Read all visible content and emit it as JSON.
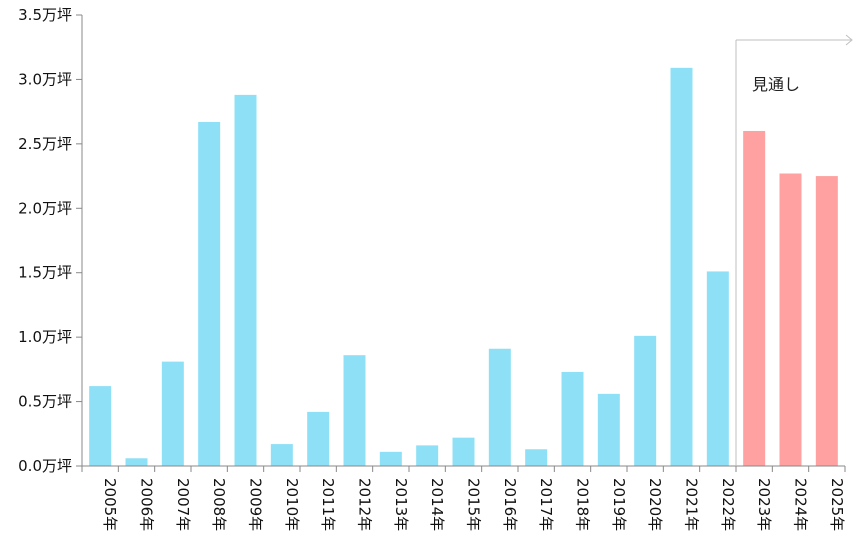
{
  "chart_data": {
    "type": "bar",
    "categories": [
      "2005年",
      "2006年",
      "2007年",
      "2008年",
      "2009年",
      "2010年",
      "2011年",
      "2012年",
      "2013年",
      "2014年",
      "2015年",
      "2016年",
      "2017年",
      "2018年",
      "2019年",
      "2020年",
      "2021年",
      "2022年",
      "2023年",
      "2024年",
      "2025年"
    ],
    "values": [
      0.62,
      0.06,
      0.81,
      2.67,
      2.88,
      0.17,
      0.42,
      0.86,
      0.11,
      0.16,
      0.22,
      0.91,
      0.13,
      0.73,
      0.56,
      1.01,
      3.09,
      1.51,
      2.6,
      2.27,
      2.25
    ],
    "forecast_start_index": 18,
    "title": "",
    "xlabel": "",
    "ylabel": "",
    "ylim": [
      0,
      3.5
    ],
    "yticks": [
      "0.0万坪",
      "0.5万坪",
      "1.0万坪",
      "1.5万坪",
      "2.0万坪",
      "2.5万坪",
      "3.0万坪",
      "3.5万坪"
    ],
    "grid": false,
    "legend": "none",
    "annotation": {
      "text": "見通し"
    },
    "colors": {
      "actual": "#8ee0f6",
      "forecast": "#ffa1a1",
      "axis": "#888888",
      "divider": "#bfbfbf"
    }
  }
}
